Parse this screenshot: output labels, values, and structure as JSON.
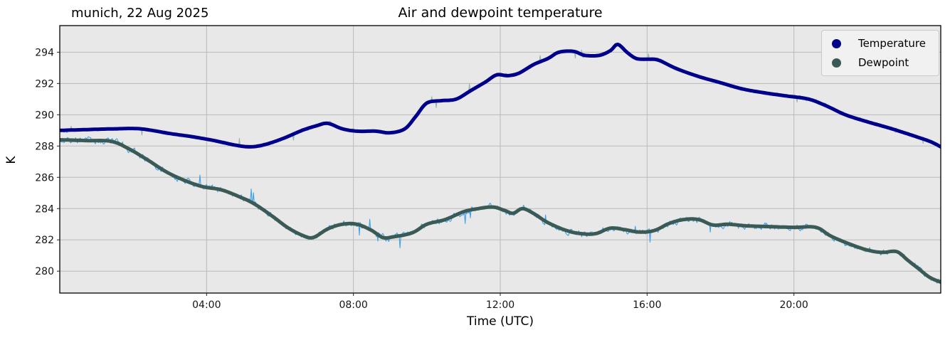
{
  "chart_data": {
    "type": "line",
    "title": "Air and dewpoint temperature",
    "annotation": "munich, 22 Aug 2025",
    "xlabel": "Time (UTC)",
    "ylabel": "K",
    "xlim": [
      0,
      24
    ],
    "ylim": [
      278.6,
      295.7
    ],
    "x_ticks": [
      {
        "t": 4,
        "label": "04:00"
      },
      {
        "t": 8,
        "label": "08:00"
      },
      {
        "t": 12,
        "label": "12:00"
      },
      {
        "t": 16,
        "label": "16:00"
      },
      {
        "t": 20,
        "label": "20:00"
      }
    ],
    "y_ticks": [
      280,
      282,
      284,
      286,
      288,
      290,
      292,
      294
    ],
    "grid": true,
    "legend_position": "upper right",
    "colors": {
      "plot_bg": "#e8e8e8",
      "grid": "#bababa",
      "spine": "#000000"
    },
    "series": [
      {
        "name": "Temperature",
        "color": "#00008b",
        "raw_color": "#94b5ab",
        "raw_noise": 0.09,
        "points": [
          [
            0,
            289.0
          ],
          [
            0.7,
            289.05
          ],
          [
            1.5,
            289.1
          ],
          [
            2.2,
            289.1
          ],
          [
            3,
            288.8
          ],
          [
            3.6,
            288.6
          ],
          [
            4.2,
            288.35
          ],
          [
            4.8,
            288.05
          ],
          [
            5.2,
            287.95
          ],
          [
            5.6,
            288.1
          ],
          [
            6.1,
            288.5
          ],
          [
            6.6,
            289.0
          ],
          [
            7.0,
            289.3
          ],
          [
            7.3,
            289.45
          ],
          [
            7.7,
            289.1
          ],
          [
            8.1,
            288.95
          ],
          [
            8.6,
            288.95
          ],
          [
            9.0,
            288.85
          ],
          [
            9.4,
            289.1
          ],
          [
            9.7,
            289.9
          ],
          [
            10.0,
            290.75
          ],
          [
            10.4,
            290.9
          ],
          [
            10.8,
            291.0
          ],
          [
            11.2,
            291.55
          ],
          [
            11.6,
            292.1
          ],
          [
            11.9,
            292.55
          ],
          [
            12.2,
            292.5
          ],
          [
            12.5,
            292.65
          ],
          [
            12.9,
            293.2
          ],
          [
            13.3,
            293.6
          ],
          [
            13.6,
            294.0
          ],
          [
            14.0,
            294.05
          ],
          [
            14.3,
            293.8
          ],
          [
            14.7,
            293.8
          ],
          [
            15.0,
            294.1
          ],
          [
            15.2,
            294.5
          ],
          [
            15.45,
            294.0
          ],
          [
            15.7,
            293.6
          ],
          [
            16.0,
            293.55
          ],
          [
            16.3,
            293.5
          ],
          [
            16.8,
            292.95
          ],
          [
            17.4,
            292.45
          ],
          [
            18.0,
            292.05
          ],
          [
            18.6,
            291.65
          ],
          [
            19.2,
            291.4
          ],
          [
            19.8,
            291.2
          ],
          [
            20.4,
            291.0
          ],
          [
            20.9,
            290.55
          ],
          [
            21.4,
            290.0
          ],
          [
            22.0,
            289.55
          ],
          [
            22.6,
            289.15
          ],
          [
            23.2,
            288.7
          ],
          [
            23.7,
            288.3
          ],
          [
            24,
            287.95
          ]
        ]
      },
      {
        "name": "Dewpoint",
        "color": "#3c5a55",
        "raw_color": "#3fa2e8",
        "raw_noise": 0.16,
        "points": [
          [
            0,
            288.4
          ],
          [
            0.7,
            288.35
          ],
          [
            1.4,
            288.3
          ],
          [
            1.9,
            287.8
          ],
          [
            2.4,
            287.1
          ],
          [
            2.9,
            286.35
          ],
          [
            3.4,
            285.8
          ],
          [
            3.9,
            285.4
          ],
          [
            4.4,
            285.2
          ],
          [
            4.9,
            284.75
          ],
          [
            5.3,
            284.3
          ],
          [
            5.8,
            283.5
          ],
          [
            6.2,
            282.8
          ],
          [
            6.6,
            282.3
          ],
          [
            6.9,
            282.15
          ],
          [
            7.3,
            282.7
          ],
          [
            7.7,
            283.0
          ],
          [
            8.1,
            283.0
          ],
          [
            8.5,
            282.6
          ],
          [
            8.8,
            282.15
          ],
          [
            9.1,
            282.2
          ],
          [
            9.6,
            282.45
          ],
          [
            10.0,
            283.0
          ],
          [
            10.5,
            283.3
          ],
          [
            11.0,
            283.8
          ],
          [
            11.4,
            284.0
          ],
          [
            11.8,
            284.1
          ],
          [
            12.1,
            283.9
          ],
          [
            12.35,
            283.7
          ],
          [
            12.6,
            284.0
          ],
          [
            12.9,
            283.7
          ],
          [
            13.3,
            283.1
          ],
          [
            13.8,
            282.6
          ],
          [
            14.2,
            282.4
          ],
          [
            14.6,
            282.4
          ],
          [
            15.0,
            282.75
          ],
          [
            15.4,
            282.65
          ],
          [
            15.8,
            282.5
          ],
          [
            16.2,
            282.6
          ],
          [
            16.6,
            283.05
          ],
          [
            17.0,
            283.3
          ],
          [
            17.4,
            283.3
          ],
          [
            17.8,
            282.95
          ],
          [
            18.2,
            283.0
          ],
          [
            18.7,
            282.9
          ],
          [
            19.3,
            282.85
          ],
          [
            20.0,
            282.8
          ],
          [
            20.6,
            282.8
          ],
          [
            21.0,
            282.25
          ],
          [
            21.5,
            281.75
          ],
          [
            22.0,
            281.35
          ],
          [
            22.4,
            281.2
          ],
          [
            22.8,
            281.25
          ],
          [
            23.1,
            280.7
          ],
          [
            23.4,
            280.15
          ],
          [
            23.7,
            279.6
          ],
          [
            24,
            279.3
          ]
        ]
      }
    ]
  }
}
